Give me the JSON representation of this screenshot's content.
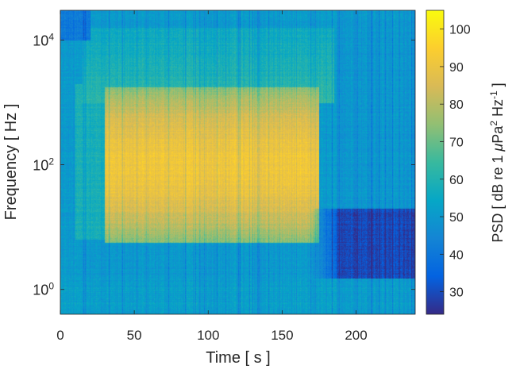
{
  "chart_data": {
    "type": "heatmap",
    "subtype": "spectrogram",
    "x": {
      "label": "Time [ s ]",
      "range": [
        0,
        240
      ],
      "ticks": [
        0,
        50,
        100,
        150,
        200
      ],
      "tick_labels": [
        "0",
        "50",
        "100",
        "150",
        "200"
      ]
    },
    "y": {
      "label": "Frequency [ Hz ]",
      "scale": "log",
      "range": [
        0.4,
        30000
      ],
      "ticks": [
        1,
        100,
        10000
      ],
      "tick_labels": [
        {
          "base": "10",
          "exp": "0"
        },
        {
          "base": "10",
          "exp": "2"
        },
        {
          "base": "10",
          "exp": "4"
        }
      ]
    },
    "colorbar": {
      "label_parts": {
        "pre": "PSD [ dB re 1 ",
        "mu": "μ",
        "pa": "Pa",
        "sq": "2",
        "hz": " Hz",
        "neg1": "-1",
        "post": " ]"
      },
      "range": [
        24,
        105
      ],
      "ticks": [
        30,
        40,
        50,
        60,
        70,
        80,
        90,
        100
      ],
      "tick_labels": [
        "30",
        "40",
        "50",
        "60",
        "70",
        "80",
        "90",
        "100"
      ],
      "colormap": "parula"
    },
    "grid": false,
    "description_values": {
      "loud_interval_s": [
        30,
        175
      ],
      "loud_band_hz": [
        10,
        1000
      ],
      "peak_psd_db": 95,
      "background_psd_db": 50,
      "quiet_low_freq_region_s": [
        180,
        240
      ],
      "quiet_low_freq_region_hz": [
        1.5,
        20
      ],
      "quiet_psd_db": 30
    }
  },
  "colors": {
    "parula_low": "#352a87",
    "parula_mid": "#1fafae",
    "parula_high": "#f9fb0e",
    "axis": "#262626"
  }
}
